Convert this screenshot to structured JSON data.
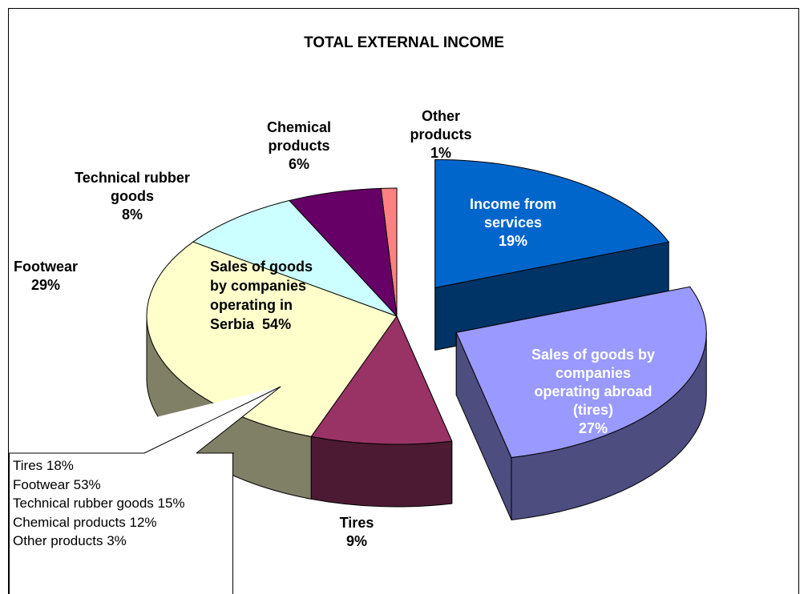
{
  "chart_data": {
    "type": "pie3d",
    "title": "TOTAL EXTERNAL INCOME",
    "categories": [
      "Income from services",
      "Sales of goods by companies operating abroad (tires)",
      "Tires",
      "Footwear",
      "Technical rubber goods",
      "Chemical products",
      "Other products"
    ],
    "values": [
      19,
      27,
      9,
      29,
      8,
      6,
      1
    ],
    "value_labels": [
      "19%",
      "27%",
      "9%",
      "29%",
      "8%",
      "6%",
      "1%"
    ],
    "colors": [
      "#0066cc",
      "#9999ff",
      "#993366",
      "#ffffcc",
      "#ccffff",
      "#660066",
      "#ff8080"
    ],
    "side_colors": [
      "#003366",
      "#4d4d80",
      "#4d1a33",
      "#808066",
      "#668080",
      "#330033",
      "#804040"
    ],
    "explode": [
      true,
      true,
      false,
      false,
      false,
      false,
      false
    ],
    "annotation": {
      "label": "Sales of goods by companies operating in Serbia",
      "value": 54,
      "value_label": "54%"
    },
    "callout": [
      {
        "name": "Tires",
        "value": 18,
        "value_label": "18%"
      },
      {
        "name": "Footwear",
        "value": 53,
        "value_label": "53%"
      },
      {
        "name": "Technical rubber goods",
        "value": 15,
        "value_label": "15%"
      },
      {
        "name": "Chemical products",
        "value": 12,
        "value_label": "12%"
      },
      {
        "name": "Other products",
        "value": 3,
        "value_label": "3%"
      }
    ]
  }
}
